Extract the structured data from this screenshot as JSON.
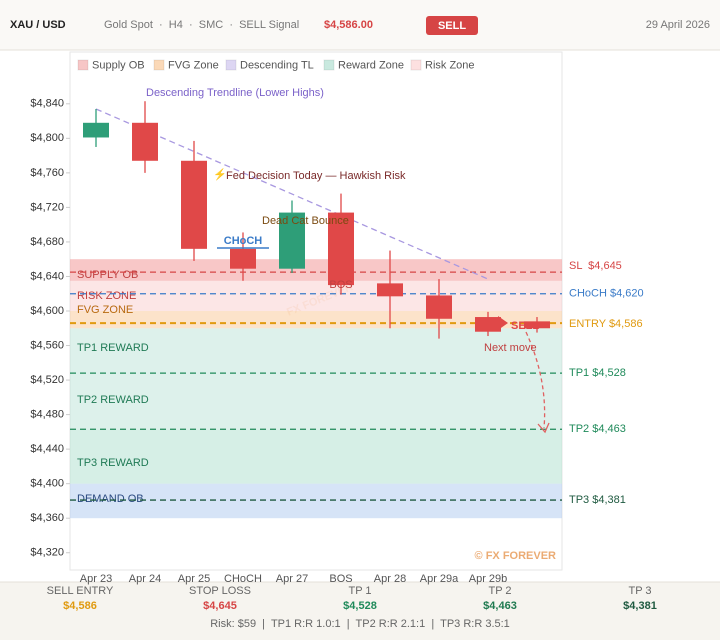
{
  "header": {
    "pair": "XAU / USD",
    "meta": "Gold Spot  ·  H4  ·  SMC  ·  SELL Signal",
    "price": "$4,586.00",
    "signal": "SELL",
    "date": "29 April 2026"
  },
  "chart_data": {
    "type": "candlestick",
    "categories": [
      "Apr 23",
      "Apr 24",
      "Apr 25",
      "CHoCH",
      "Apr 27",
      "BOS",
      "Apr 28",
      "Apr 29a",
      "Apr 29b",
      null
    ],
    "open": [
      4801,
      4818,
      4774,
      4672,
      4649,
      4714,
      4632,
      4618,
      4593,
      4588
    ],
    "high": [
      4834,
      4843,
      4797,
      4691,
      4728,
      4736,
      4670,
      4637,
      4599,
      4593
    ],
    "low": [
      4790,
      4760,
      4658,
      4635,
      4644,
      4619,
      4580,
      4568,
      4571,
      4575
    ],
    "close": [
      4818,
      4774,
      4672,
      4649,
      4714,
      4630,
      4617,
      4591,
      4576,
      4580
    ],
    "up_color": "#2e9e78",
    "down_color": "#e04848",
    "ylim": [
      4300,
      4900
    ],
    "yticks": [
      {
        "value": 4320,
        "label": "$4,320"
      },
      {
        "value": 4360,
        "label": "$4,360"
      },
      {
        "value": 4400,
        "label": "$4,400"
      },
      {
        "value": 4440,
        "label": "$4,440"
      },
      {
        "value": 4480,
        "label": "$4,480"
      },
      {
        "value": 4520,
        "label": "$4,520"
      },
      {
        "value": 4560,
        "label": "$4,560"
      },
      {
        "value": 4600,
        "label": "$4,600"
      },
      {
        "value": 4640,
        "label": "$4,640"
      },
      {
        "value": 4680,
        "label": "$4,680"
      },
      {
        "value": 4720,
        "label": "$4,720"
      },
      {
        "value": 4760,
        "label": "$4,760"
      },
      {
        "value": 4800,
        "label": "$4,800"
      },
      {
        "value": 4840,
        "label": "$4,840"
      }
    ],
    "legend": [
      {
        "name": "Supply OB",
        "color": "#f7c6c6"
      },
      {
        "name": "FVG Zone",
        "color": "#fbd9b8"
      },
      {
        "name": "Descending TL",
        "color": "#ddd6f3"
      },
      {
        "name": "Reward Zone",
        "color": "#c9e9df"
      },
      {
        "name": "Risk Zone",
        "color": "#fde0e0"
      }
    ],
    "zones": [
      {
        "name": "RISK ZONE",
        "low": 4600,
        "high": 4660,
        "color": "rgba(248,200,200,0.45)",
        "text_color": "#c04040"
      },
      {
        "name": "SUPPLY OB",
        "low": 4635,
        "high": 4660,
        "color": "rgba(240,140,140,0.35)",
        "text_color": "#c04040"
      },
      {
        "name": "FVG ZONE",
        "low": 4580,
        "high": 4600,
        "color": "rgba(250,200,150,0.5)",
        "text_color": "#b86a10"
      },
      {
        "name": "TP1 REWARD",
        "low": 4528,
        "high": 4580,
        "color": "rgba(180,225,210,0.45)",
        "text_color": "#1f7a55"
      },
      {
        "name": "TP2 REWARD",
        "low": 4463,
        "high": 4528,
        "color": "rgba(180,225,210,0.45)",
        "text_color": "#1f7a55"
      },
      {
        "name": "TP3 REWARD",
        "low": 4400,
        "high": 4463,
        "color": "rgba(180,225,210,0.55)",
        "text_color": "#1f7a55"
      },
      {
        "name": "DEMAND OB",
        "low": 4360,
        "high": 4400,
        "color": "rgba(180,205,240,0.55)",
        "text_color": "#2a4a80"
      }
    ],
    "levels": [
      {
        "label": "SL  $4,645",
        "value": 4645,
        "color": "#d64545"
      },
      {
        "label": "CHoCH $4,620",
        "value": 4620,
        "color": "#3a7bc8"
      },
      {
        "label": "ENTRY $4,586",
        "value": 4586,
        "color": "#e09a10"
      },
      {
        "label": "TP1 $4,528",
        "value": 4528,
        "color": "#1f8a5a"
      },
      {
        "label": "TP2 $4,463",
        "value": 4463,
        "color": "#1f8a5a"
      },
      {
        "label": "TP3 $4,381",
        "value": 4381,
        "color": "#1f5a40"
      }
    ],
    "trendline": {
      "label": "Descending Trendline (Lower Highs)",
      "values": [
        4834,
        4637
      ]
    },
    "annotations": {
      "fed": "Fed Decision Today — Hawkish Risk",
      "bounce": "Dead Cat Bounce",
      "choch": "CHoCH",
      "bos": "BOS",
      "sell": "SELL",
      "next": "Next move",
      "watermark": "FX FOREVER",
      "credit": "© FX FOREVER"
    }
  },
  "footer": {
    "items": [
      {
        "label": "SELL ENTRY",
        "value": "$4,586"
      },
      {
        "label": "STOP LOSS",
        "value": "$4,645"
      },
      {
        "label": "TP 1",
        "value": "$4,528"
      },
      {
        "label": "TP 2",
        "value": "$4,463"
      },
      {
        "label": "TP 3",
        "value": "$4,381"
      }
    ],
    "summary": "Risk: $59  |  TP1 R:R 1.0:1  |  TP2 R:R 2.1:1  |  TP3 R:R 3.5:1"
  }
}
